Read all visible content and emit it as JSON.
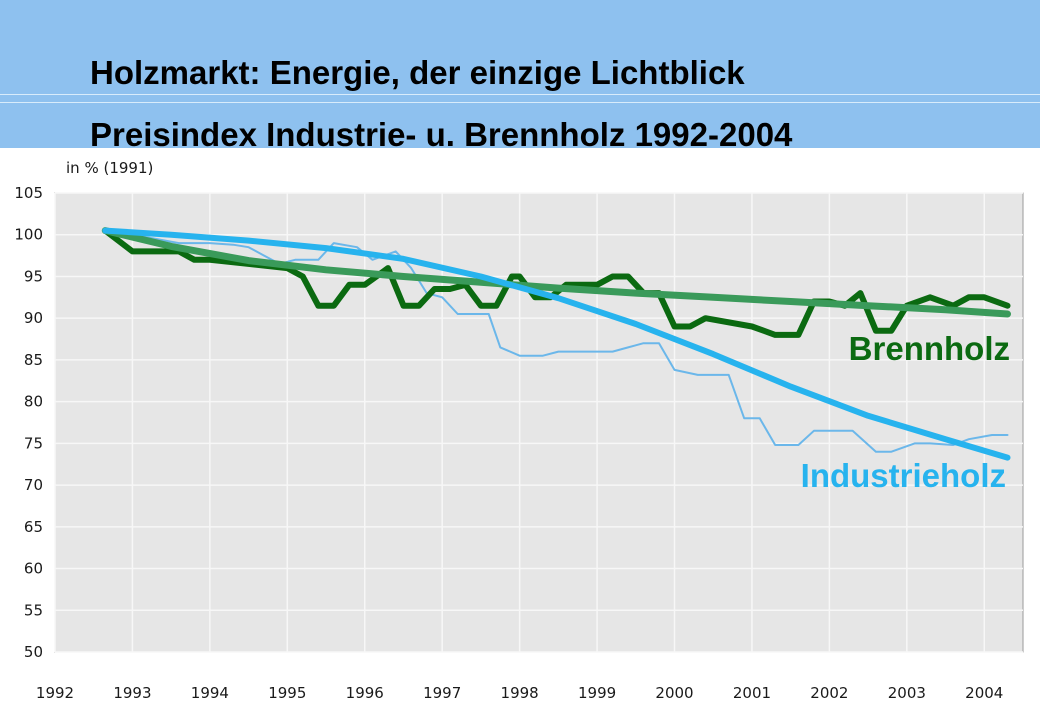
{
  "chart_data": {
    "type": "line",
    "title": "Holzmarkt: Energie, der einzige Lichtblick",
    "subtitle": "Preisindex Industrie- u. Brennholz 1992-2004",
    "ylabel": "in % (1991)",
    "xlabel": "",
    "ylim": [
      50,
      105
    ],
    "xlim": [
      1992,
      2004.5
    ],
    "grid": true,
    "x_ticks": [
      "1992",
      "1993",
      "1994",
      "1995",
      "1996",
      "1997",
      "1998",
      "1999",
      "2000",
      "2001",
      "2002",
      "2003",
      "2004"
    ],
    "y_ticks": [
      50,
      55,
      60,
      65,
      70,
      75,
      80,
      85,
      90,
      95,
      100,
      105
    ],
    "colors": {
      "plot_bg": "#e6e6e6",
      "grid": "#f7f7f7",
      "industrieholz_raw": "#6bb7ea",
      "brennholz_raw": "#0b6a11",
      "industrieholz_trend": "#27b3ee",
      "brennholz_trend": "#3a9a5a",
      "header_bg": "#8ec1ef"
    },
    "series": [
      {
        "name": "Industrieholz",
        "kind": "raw",
        "x": [
          1992.65,
          1993.0,
          1993.3,
          1993.6,
          1994.0,
          1994.3,
          1994.5,
          1994.7,
          1994.9,
          1995.1,
          1995.4,
          1995.6,
          1995.9,
          1996.1,
          1996.4,
          1996.6,
          1996.8,
          1997.0,
          1997.2,
          1997.4,
          1997.6,
          1997.75,
          1998.0,
          1998.3,
          1998.5,
          1998.7,
          1999.0,
          1999.2,
          1999.4,
          1999.6,
          1999.8,
          2000.0,
          2000.3,
          2000.5,
          2000.7,
          2000.9,
          2001.1,
          2001.3,
          2001.6,
          2001.8,
          2002.1,
          2002.3,
          2002.6,
          2002.8,
          2003.1,
          2003.3,
          2003.6,
          2003.8,
          2004.1,
          2004.3
        ],
        "y": [
          100.5,
          100,
          99.5,
          99,
          99,
          98.8,
          98.5,
          97.5,
          96.5,
          97,
          97,
          99,
          98.5,
          97,
          98,
          96,
          93,
          92.5,
          90.5,
          90.5,
          90.5,
          86.5,
          85.5,
          85.5,
          86,
          86,
          86,
          86,
          86.5,
          87,
          87,
          83.8,
          83.2,
          83.2,
          83.2,
          78,
          78,
          74.8,
          74.8,
          76.5,
          76.5,
          76.5,
          74,
          74,
          75,
          75,
          74.8,
          75.5,
          76,
          76
        ]
      },
      {
        "name": "Brennholz",
        "kind": "raw",
        "x": [
          1992.65,
          1993.0,
          1993.3,
          1993.6,
          1993.8,
          1994.0,
          1994.5,
          1995.0,
          1995.2,
          1995.4,
          1995.6,
          1995.8,
          1996.0,
          1996.3,
          1996.5,
          1996.7,
          1996.9,
          1997.1,
          1997.3,
          1997.5,
          1997.7,
          1997.9,
          1998.0,
          1998.2,
          1998.4,
          1998.6,
          1998.8,
          1999.0,
          1999.2,
          1999.4,
          1999.6,
          1999.8,
          2000.0,
          2000.2,
          2000.4,
          2001.0,
          2001.3,
          2001.6,
          2001.8,
          2002.0,
          2002.2,
          2002.4,
          2002.6,
          2002.8,
          2003.0,
          2003.3,
          2003.6,
          2003.8,
          2004.0,
          2004.3
        ],
        "y": [
          100.5,
          98,
          98,
          98,
          97,
          97,
          96.5,
          96,
          95,
          91.5,
          91.5,
          94,
          94,
          96,
          91.5,
          91.5,
          93.5,
          93.5,
          94,
          91.5,
          91.5,
          95,
          95,
          92.5,
          92.5,
          94,
          94,
          94,
          95,
          95,
          93,
          93,
          89,
          89,
          90,
          89,
          88,
          88,
          92,
          92,
          91.5,
          93,
          88.5,
          88.5,
          91.5,
          92.5,
          91.5,
          92.5,
          92.5,
          91.5
        ]
      },
      {
        "name": "Brennholz",
        "kind": "trend",
        "x": [
          1992.65,
          1993.5,
          1994.5,
          1995.5,
          1996.5,
          1997.5,
          1998.5,
          1999.5,
          2000.5,
          2001.5,
          2002.5,
          2003.5,
          2004.3
        ],
        "y": [
          100.5,
          98.6,
          96.9,
          95.8,
          95.0,
          94.3,
          93.6,
          93.0,
          92.5,
          92.0,
          91.5,
          91.0,
          90.5
        ]
      },
      {
        "name": "Industrieholz",
        "kind": "trend",
        "x": [
          1992.65,
          1993.5,
          1994.5,
          1995.5,
          1996.5,
          1997.5,
          1998.5,
          1999.5,
          2000.5,
          2001.5,
          2002.5,
          2003.5,
          2004.3
        ],
        "y": [
          100.5,
          100.0,
          99.3,
          98.4,
          97.1,
          95.0,
          92.4,
          89.3,
          85.7,
          81.8,
          78.3,
          75.5,
          73.3
        ]
      }
    ],
    "labels": {
      "brennholz": "Brennholz",
      "industrieholz": "Industrieholz"
    }
  }
}
